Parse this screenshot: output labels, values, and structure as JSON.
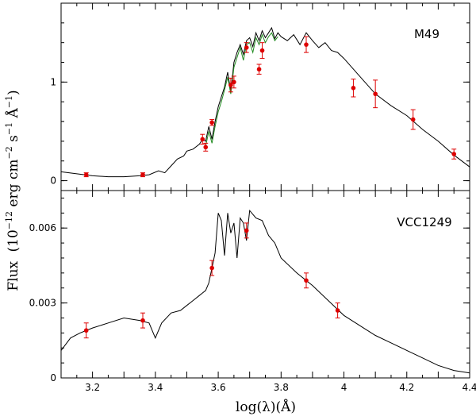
{
  "chart_data": {
    "type": "line",
    "shared_x": {
      "label": "log(λ)(Å)",
      "lim": [
        3.1,
        4.4
      ],
      "ticks": [
        3.2,
        3.4,
        3.6,
        3.8,
        4,
        4.2,
        4.4
      ],
      "tick_labels": [
        "3.2",
        "3.4",
        "3.6",
        "3.8",
        "4",
        "4.2",
        "4.4"
      ]
    },
    "shared_y_label": {
      "prefix": "Flux",
      "body": "(10",
      "exp": "−12",
      "unit": " erg cm",
      "unit_exp": "−2",
      "s": " s",
      "s_exp": "−1",
      "A": " Å",
      "A_exp": "−1",
      "close": ")"
    },
    "panels": [
      {
        "label": "M49",
        "ylim": [
          -0.1,
          1.8
        ],
        "yticks": [
          0,
          1
        ],
        "ytick_labels": [
          "0",
          "1"
        ],
        "model_spectrum": {
          "name": "model",
          "color": "#000000",
          "x": [
            3.1,
            3.15,
            3.2,
            3.25,
            3.3,
            3.35,
            3.38,
            3.41,
            3.43,
            3.45,
            3.47,
            3.49,
            3.5,
            3.52,
            3.54,
            3.55,
            3.56,
            3.57,
            3.58,
            3.59,
            3.6,
            3.61,
            3.62,
            3.63,
            3.64,
            3.65,
            3.66,
            3.67,
            3.68,
            3.69,
            3.7,
            3.71,
            3.72,
            3.73,
            3.74,
            3.75,
            3.76,
            3.77,
            3.78,
            3.79,
            3.8,
            3.82,
            3.84,
            3.86,
            3.88,
            3.9,
            3.92,
            3.94,
            3.96,
            3.98,
            4.0,
            4.05,
            4.1,
            4.15,
            4.2,
            4.25,
            4.3,
            4.35,
            4.4
          ],
          "y": [
            0.09,
            0.07,
            0.05,
            0.04,
            0.04,
            0.05,
            0.06,
            0.1,
            0.08,
            0.15,
            0.22,
            0.25,
            0.3,
            0.32,
            0.37,
            0.42,
            0.4,
            0.55,
            0.42,
            0.6,
            0.75,
            0.85,
            0.95,
            1.1,
            0.9,
            1.2,
            1.3,
            1.38,
            1.28,
            1.42,
            1.45,
            1.36,
            1.5,
            1.42,
            1.52,
            1.45,
            1.5,
            1.55,
            1.44,
            1.5,
            1.46,
            1.42,
            1.48,
            1.38,
            1.5,
            1.42,
            1.35,
            1.4,
            1.32,
            1.3,
            1.24,
            1.06,
            0.88,
            0.76,
            0.66,
            0.52,
            0.4,
            0.26,
            0.14
          ]
        },
        "observed_spectrum": {
          "name": "observed",
          "color": "#1f8a1f",
          "x": [
            3.56,
            3.57,
            3.58,
            3.59,
            3.6,
            3.61,
            3.62,
            3.63,
            3.64,
            3.65,
            3.66,
            3.67,
            3.68,
            3.69,
            3.7,
            3.71,
            3.72,
            3.73,
            3.74,
            3.75,
            3.76,
            3.77,
            3.78,
            3.79
          ],
          "y": [
            0.35,
            0.5,
            0.38,
            0.55,
            0.7,
            0.8,
            0.92,
            1.05,
            0.88,
            1.15,
            1.25,
            1.35,
            1.22,
            1.38,
            1.4,
            1.3,
            1.45,
            1.38,
            1.48,
            1.4,
            1.46,
            1.5,
            1.42,
            1.46
          ]
        },
        "photometry": {
          "name": "photometry",
          "color": "#dd0000",
          "x": [
            3.18,
            3.36,
            3.55,
            3.56,
            3.58,
            3.64,
            3.65,
            3.69,
            3.73,
            3.74,
            3.88,
            4.03,
            4.1,
            4.22,
            4.35
          ],
          "y": [
            0.06,
            0.06,
            0.42,
            0.34,
            0.59,
            0.97,
            1.0,
            1.35,
            1.13,
            1.32,
            1.38,
            0.94,
            0.88,
            0.62,
            0.27
          ],
          "err": [
            0.02,
            0.02,
            0.05,
            0.04,
            0.03,
            0.07,
            0.06,
            0.05,
            0.05,
            0.08,
            0.08,
            0.09,
            0.14,
            0.1,
            0.05
          ]
        }
      },
      {
        "label": "VCC1249",
        "ylim": [
          0,
          0.0075
        ],
        "yticks": [
          0,
          0.003,
          0.006
        ],
        "ytick_labels": [
          "0",
          "0.003",
          "0.006"
        ],
        "model_spectrum": {
          "name": "model",
          "color": "#000000",
          "x": [
            3.1,
            3.13,
            3.16,
            3.2,
            3.25,
            3.3,
            3.35,
            3.38,
            3.4,
            3.42,
            3.45,
            3.48,
            3.5,
            3.52,
            3.54,
            3.56,
            3.57,
            3.58,
            3.59,
            3.6,
            3.61,
            3.62,
            3.63,
            3.64,
            3.65,
            3.66,
            3.67,
            3.68,
            3.69,
            3.7,
            3.72,
            3.74,
            3.76,
            3.78,
            3.8,
            3.85,
            3.9,
            3.95,
            4.0,
            4.05,
            4.1,
            4.15,
            4.2,
            4.25,
            4.3,
            4.35,
            4.4
          ],
          "y": [
            0.0011,
            0.0016,
            0.0018,
            0.002,
            0.0022,
            0.0024,
            0.0023,
            0.0022,
            0.0016,
            0.0022,
            0.0026,
            0.0027,
            0.0029,
            0.0031,
            0.0033,
            0.0035,
            0.0038,
            0.0044,
            0.005,
            0.0066,
            0.0063,
            0.0049,
            0.0066,
            0.0058,
            0.0062,
            0.0048,
            0.0064,
            0.0062,
            0.0055,
            0.0067,
            0.0064,
            0.0063,
            0.0057,
            0.0054,
            0.0048,
            0.0042,
            0.0037,
            0.0031,
            0.0025,
            0.0021,
            0.0017,
            0.0014,
            0.0011,
            0.0008,
            0.0005,
            0.0003,
            0.0002
          ]
        },
        "photometry": {
          "name": "photometry",
          "color": "#dd0000",
          "x": [
            3.18,
            3.36,
            3.58,
            3.69,
            3.88,
            3.98
          ],
          "y": [
            0.0019,
            0.0023,
            0.0044,
            0.0059,
            0.0039,
            0.0027
          ],
          "err": [
            0.0003,
            0.0003,
            0.0003,
            0.0003,
            0.0003,
            0.0003
          ]
        }
      }
    ]
  }
}
